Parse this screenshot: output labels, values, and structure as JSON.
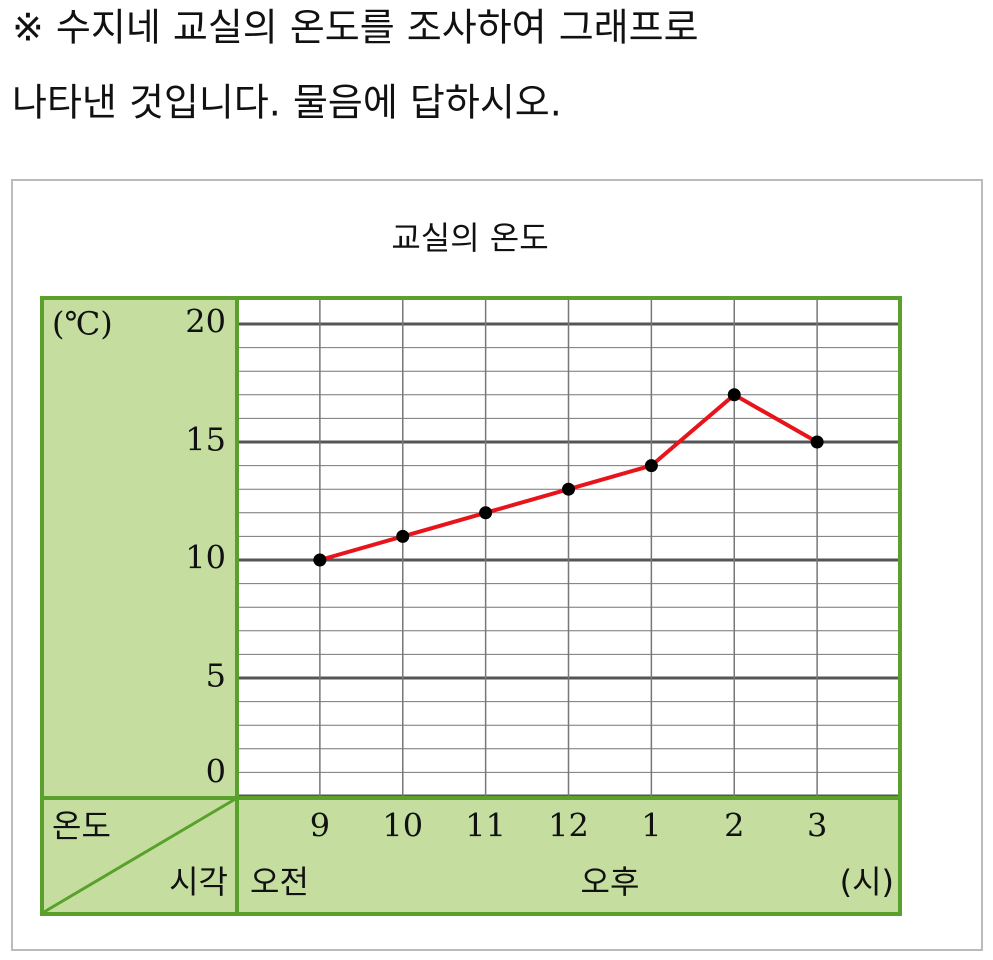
{
  "question": [
    "※ 수지네 교실의 온도를 조사하여 그래프로",
    "나타낸 것입니다. 물음에 답하시오."
  ],
  "chart_data": {
    "type": "line",
    "title": "교실의 온도",
    "y_label": "(℃)",
    "corner_labels": [
      "온도",
      "시각"
    ],
    "period_labels": [
      "오전",
      "오후"
    ],
    "x_unit": "(시)",
    "categories": [
      "9",
      "10",
      "11",
      "12",
      "1",
      "2",
      "3"
    ],
    "values": [
      10,
      11,
      12,
      13,
      14,
      17,
      15
    ],
    "color": "#e8141b",
    "marker_color": "#000000",
    "ylim": [
      0,
      20
    ],
    "yticks": [
      0,
      5,
      10,
      15,
      20
    ],
    "minor_step": 1,
    "grid": true
  }
}
